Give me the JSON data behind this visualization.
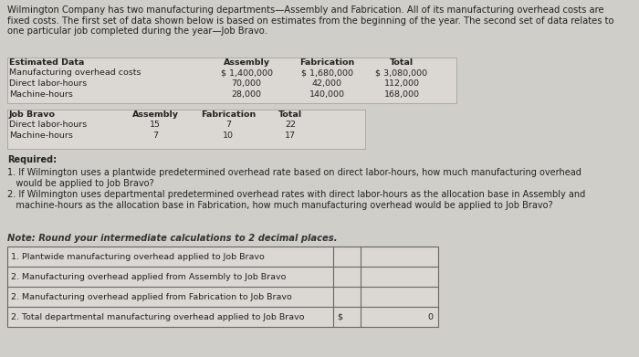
{
  "bg_color": "#d0cec9",
  "title_text": "Wilmington Company has two manufacturing departments—Assembly and Fabrication. All of its manufacturing overhead costs are\nfixed costs. The first set of data shown below is based on estimates from the beginning of the year. The second set of data relates to\none particular job completed during the year—Job Bravo.",
  "estimated_label": "Estimated Data",
  "est_headers": [
    "Assembly",
    "Fabrication",
    "Total"
  ],
  "est_rows": [
    [
      "Manufacturing overhead costs",
      "$ 1,400,000",
      "$ 1,680,000",
      "$ 3,080,000"
    ],
    [
      "Direct labor-hours",
      "70,000",
      "42,000",
      "112,000"
    ],
    [
      "Machine-hours",
      "28,000",
      "140,000",
      "168,000"
    ]
  ],
  "job_label": "Job Bravo",
  "job_headers": [
    "Assembly",
    "Fabrication",
    "Total"
  ],
  "job_rows": [
    [
      "Direct labor-hours",
      "15",
      "7",
      "22"
    ],
    [
      "Machine-hours",
      "7",
      "10",
      "17"
    ]
  ],
  "required_label": "Required:",
  "req1": "1. If Wilmington uses a plantwide predetermined overhead rate based on direct labor-hours, how much manufacturing overhead\n   would be applied to Job Bravo?",
  "req2": "2. If Wilmington uses departmental predetermined overhead rates with direct labor-hours as the allocation base in Assembly and\n   machine-hours as the allocation base in Fabrication, how much manufacturing overhead would be applied to Job Bravo?",
  "note_text": "Note: Round your intermediate calculations to 2 decimal places.",
  "answer_rows": [
    [
      "1. Plantwide manufacturing overhead applied to Job Bravo",
      "",
      ""
    ],
    [
      "2. Manufacturing overhead applied from Assembly to Job Bravo",
      "",
      ""
    ],
    [
      "2. Manufacturing overhead applied from Fabrication to Job Bravo",
      "",
      ""
    ],
    [
      "2. Total departmental manufacturing overhead applied to Job Bravo",
      "$",
      "0"
    ]
  ],
  "font_size_title": 7.2,
  "font_size_table": 6.8,
  "font_size_body": 7.0,
  "font_size_note": 7.2,
  "font_size_answer": 6.8
}
